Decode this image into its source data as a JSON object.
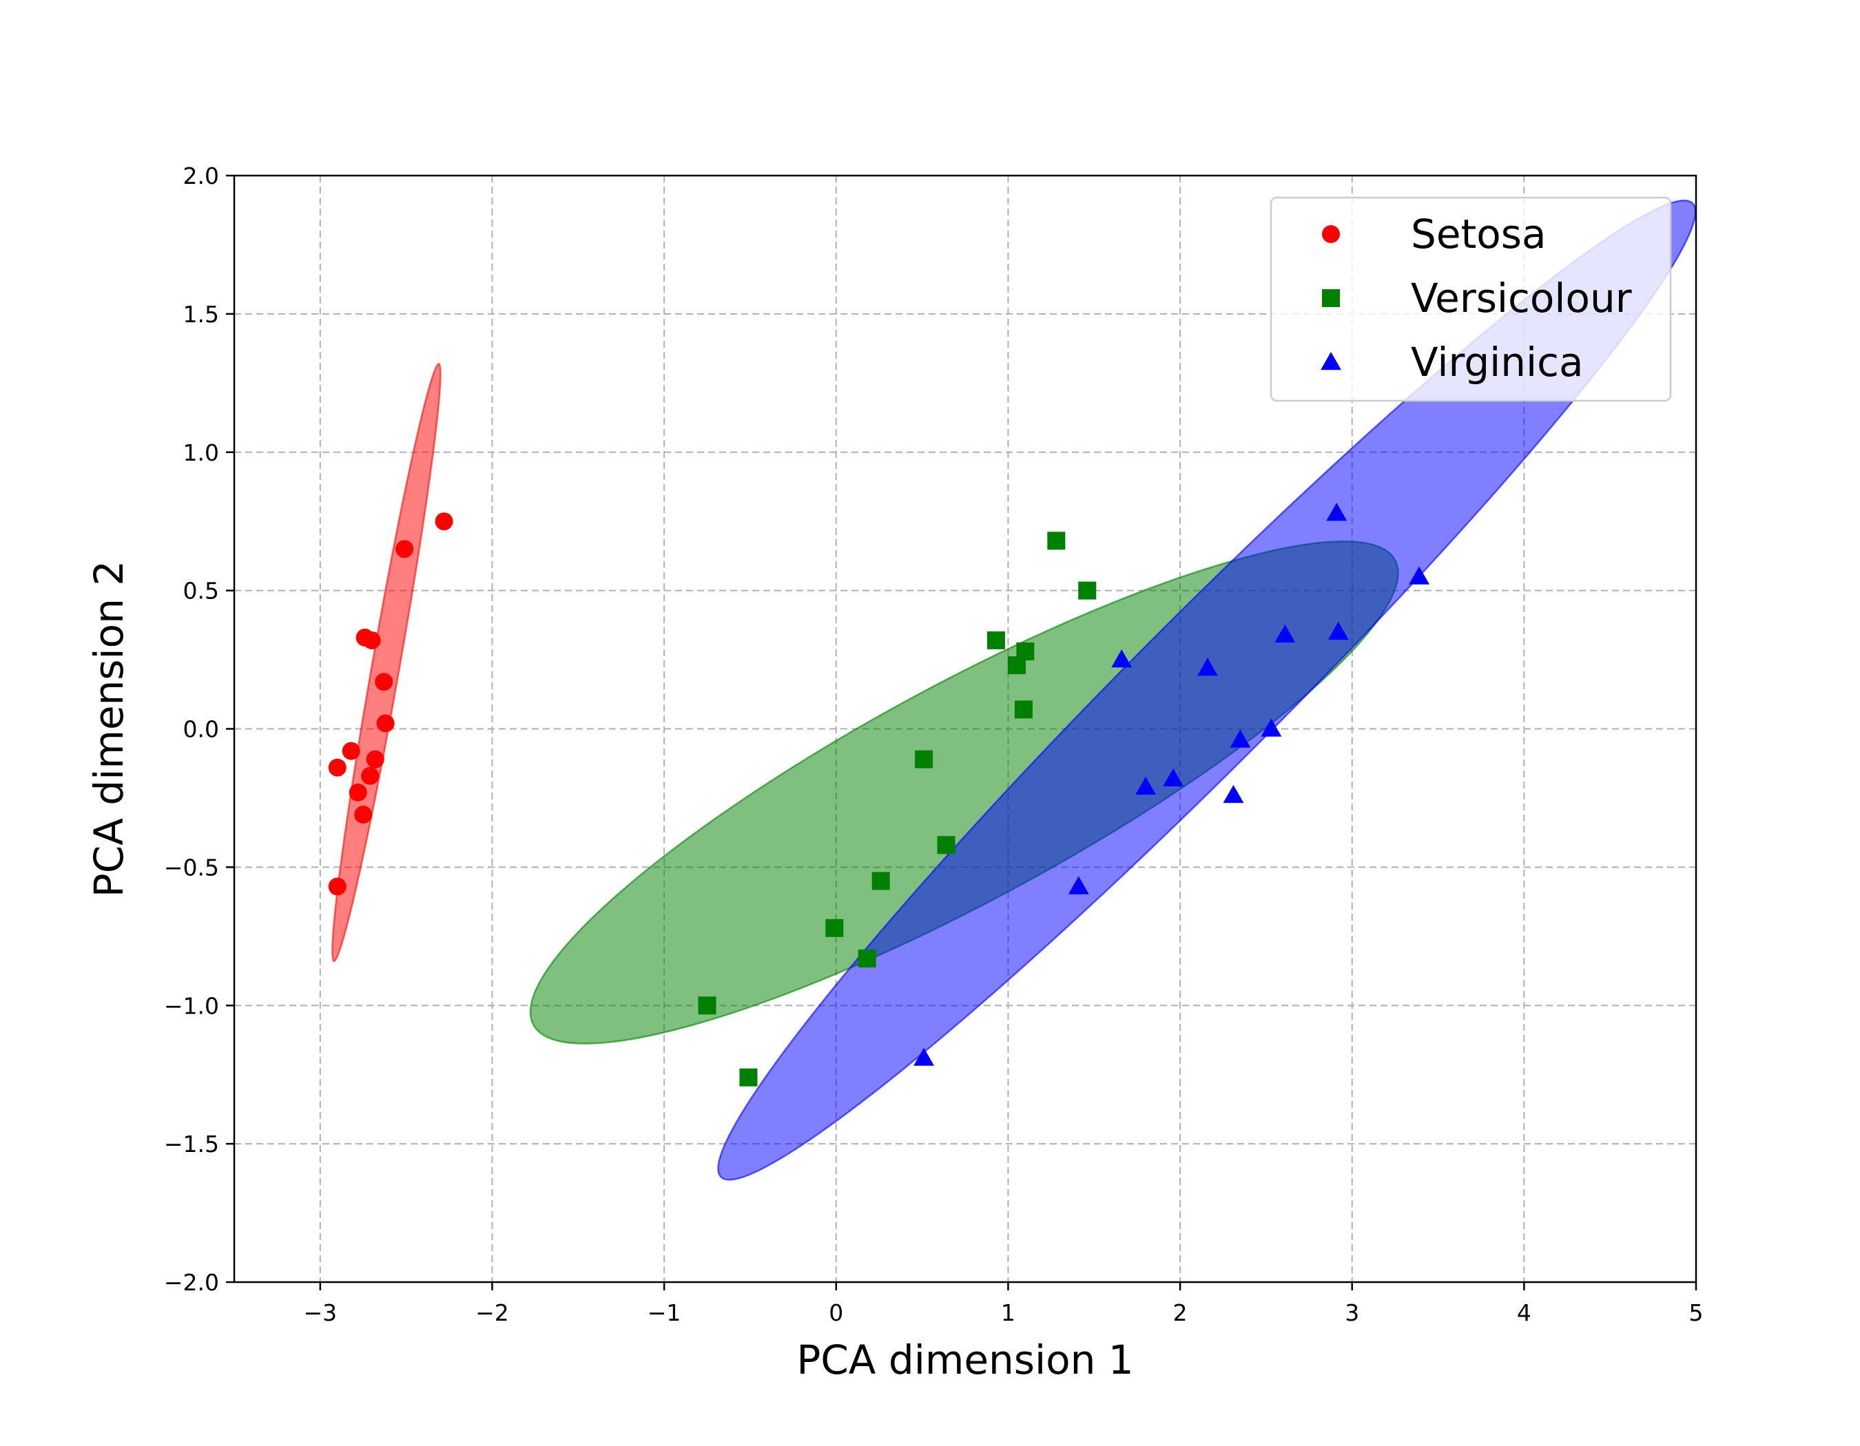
{
  "chart_data": {
    "type": "scatter",
    "title": "",
    "xlabel": "PCA dimension 1",
    "ylabel": "PCA dimension 2",
    "xlim": [
      -3.5,
      5
    ],
    "ylim": [
      -2.0,
      2.0
    ],
    "xticks": [
      -3,
      -2,
      -1,
      0,
      1,
      2,
      3,
      4,
      5
    ],
    "yticks": [
      -2.0,
      -1.5,
      -1.0,
      -0.5,
      0.0,
      0.5,
      1.0,
      1.5,
      2.0
    ],
    "xtick_labels": [
      "−3",
      "−2",
      "−1",
      "0",
      "1",
      "2",
      "3",
      "4",
      "5"
    ],
    "ytick_labels": [
      "−2.0",
      "−1.5",
      "−1.0",
      "−0.5",
      "0.0",
      "0.5",
      "1.0",
      "1.5",
      "2.0"
    ],
    "grid": true,
    "legend_position": "top-right",
    "series": [
      {
        "name": "Setosa",
        "marker": "circle",
        "color": "#ff0000",
        "ellipse_color": "#ff0000",
        "points": [
          [
            -2.28,
            0.75
          ],
          [
            -2.51,
            0.65
          ],
          [
            -2.74,
            0.33
          ],
          [
            -2.7,
            0.32
          ],
          [
            -2.63,
            0.17
          ],
          [
            -2.62,
            0.02
          ],
          [
            -2.82,
            -0.08
          ],
          [
            -2.68,
            -0.11
          ],
          [
            -2.9,
            -0.14
          ],
          [
            -2.71,
            -0.17
          ],
          [
            -2.78,
            -0.23
          ],
          [
            -2.75,
            -0.31
          ],
          [
            -2.9,
            -0.57
          ]
        ],
        "ellipse": [
          [
            -2.31,
            1.32
          ],
          [
            -2.92,
            -0.84
          ],
          [
            -2.54,
            0.24
          ],
          [
            -2.7,
            0.24
          ]
        ]
      },
      {
        "name": "Versicolour",
        "marker": "square",
        "color": "#008000",
        "ellipse_color": "#008000",
        "points": [
          [
            1.28,
            0.68
          ],
          [
            1.46,
            0.5
          ],
          [
            0.93,
            0.32
          ],
          [
            1.1,
            0.28
          ],
          [
            1.05,
            0.23
          ],
          [
            1.09,
            0.07
          ],
          [
            0.51,
            -0.11
          ],
          [
            0.64,
            -0.42
          ],
          [
            0.26,
            -0.55
          ],
          [
            -0.01,
            -0.72
          ],
          [
            0.18,
            -0.83
          ],
          [
            -0.75,
            -1.0
          ],
          [
            -0.51,
            -1.26
          ]
        ],
        "ellipse": [
          [
            3.25,
            0.61
          ],
          [
            -1.76,
            -1.07
          ],
          [
            1.06,
            0.15
          ],
          [
            0.57,
            -0.57
          ]
        ]
      },
      {
        "name": "Virginica",
        "marker": "triangle",
        "color": "#0000ff",
        "ellipse_color": "#0000ff",
        "points": [
          [
            2.91,
            0.78
          ],
          [
            3.39,
            0.55
          ],
          [
            2.61,
            0.34
          ],
          [
            2.92,
            0.35
          ],
          [
            1.66,
            0.25
          ],
          [
            2.16,
            0.22
          ],
          [
            2.53,
            0.0
          ],
          [
            2.35,
            -0.04
          ],
          [
            1.96,
            -0.18
          ],
          [
            1.8,
            -0.21
          ],
          [
            2.31,
            -0.24
          ],
          [
            1.41,
            -0.57
          ],
          [
            0.51,
            -1.19
          ]
        ],
        "ellipse": [
          [
            4.98,
            1.9
          ],
          [
            -0.67,
            -1.62
          ],
          [
            2.29,
            0.39
          ],
          [
            2.02,
            -0.12
          ]
        ]
      }
    ]
  }
}
